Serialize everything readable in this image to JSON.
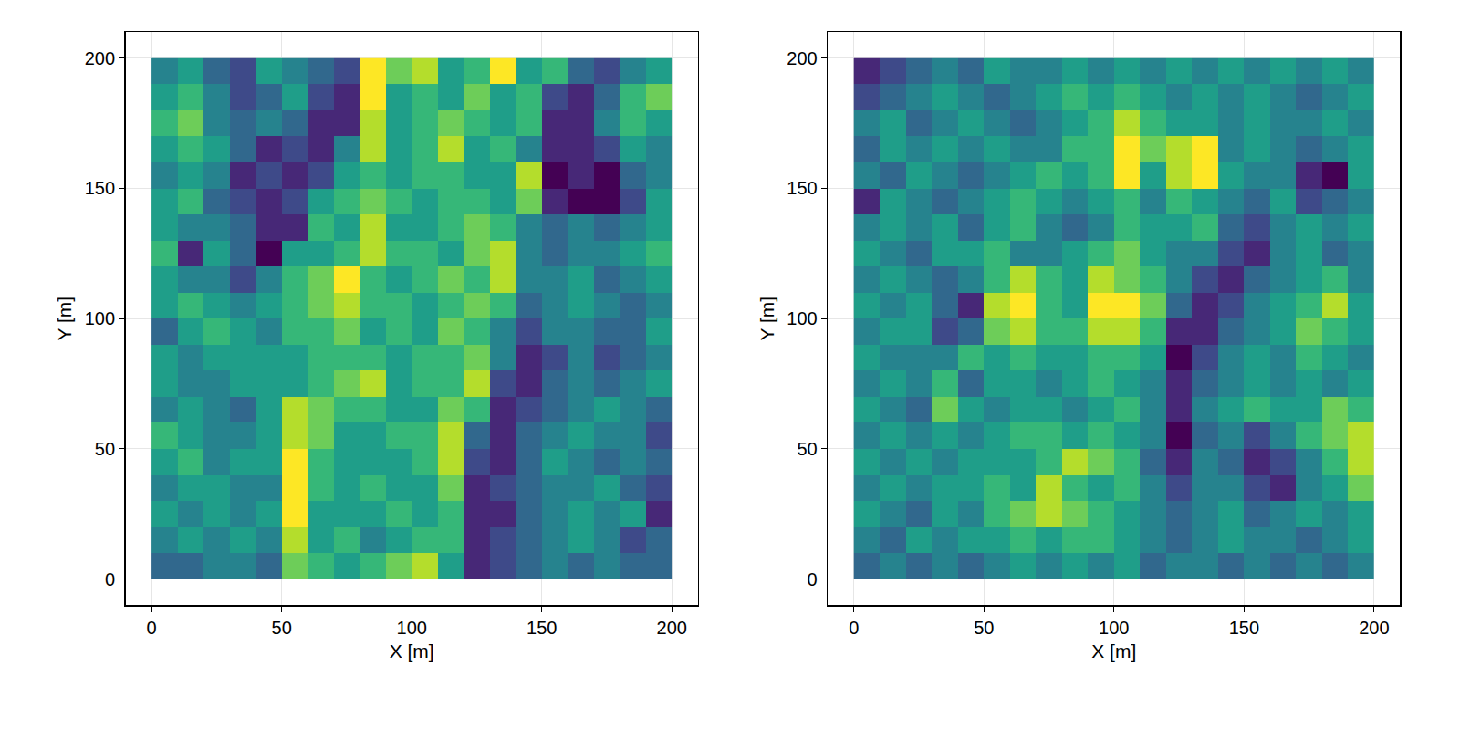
{
  "chart_data": [
    {
      "type": "heatmap",
      "xlabel": "X [m]",
      "ylabel": "Y [m]",
      "color": "Viridis",
      "grid": true,
      "xlim": [
        -10,
        210
      ],
      "ylim": [
        -10,
        210
      ],
      "xticks": [
        0,
        50,
        100,
        150,
        200
      ],
      "yticks": [
        0,
        50,
        100,
        150,
        200
      ],
      "zlim": [
        0,
        9
      ],
      "x": [
        5,
        15,
        25,
        35,
        45,
        55,
        65,
        75,
        85,
        95,
        105,
        115,
        125,
        135,
        145,
        155,
        165,
        175,
        185,
        195
      ],
      "y": [
        195,
        185,
        175,
        165,
        155,
        145,
        135,
        125,
        115,
        105,
        95,
        85,
        75,
        65,
        55,
        45,
        35,
        25,
        15,
        5
      ],
      "z": [
        [
          4,
          5,
          3,
          2,
          5,
          4,
          3,
          2,
          9,
          7,
          8,
          5,
          6,
          9,
          5,
          6,
          3,
          2,
          4,
          5
        ],
        [
          5,
          6,
          4,
          2,
          3,
          5,
          2,
          1,
          9,
          5,
          6,
          5,
          7,
          5,
          6,
          2,
          1,
          3,
          6,
          7
        ],
        [
          6,
          7,
          4,
          3,
          4,
          3,
          1,
          1,
          8,
          5,
          6,
          7,
          6,
          5,
          6,
          1,
          1,
          4,
          6,
          5
        ],
        [
          5,
          6,
          5,
          3,
          1,
          2,
          1,
          4,
          8,
          5,
          6,
          8,
          5,
          6,
          4,
          1,
          1,
          2,
          5,
          4
        ],
        [
          4,
          5,
          4,
          1,
          2,
          1,
          2,
          5,
          6,
          5,
          6,
          6,
          5,
          5,
          8,
          0,
          1,
          0,
          3,
          4
        ],
        [
          5,
          6,
          3,
          2,
          1,
          2,
          5,
          6,
          7,
          6,
          5,
          6,
          6,
          5,
          7,
          1,
          0,
          0,
          2,
          5
        ],
        [
          5,
          4,
          4,
          3,
          1,
          1,
          6,
          5,
          8,
          5,
          5,
          6,
          7,
          6,
          4,
          3,
          4,
          3,
          4,
          5
        ],
        [
          6,
          1,
          5,
          3,
          0,
          5,
          5,
          6,
          8,
          6,
          6,
          5,
          7,
          8,
          4,
          3,
          4,
          4,
          5,
          6
        ],
        [
          5,
          4,
          4,
          2,
          4,
          6,
          7,
          9,
          6,
          5,
          6,
          7,
          6,
          8,
          4,
          4,
          5,
          3,
          4,
          5
        ],
        [
          5,
          6,
          5,
          4,
          5,
          6,
          7,
          8,
          6,
          6,
          5,
          6,
          7,
          6,
          3,
          4,
          5,
          4,
          3,
          4
        ],
        [
          3,
          5,
          6,
          5,
          4,
          6,
          6,
          7,
          5,
          6,
          5,
          7,
          6,
          4,
          2,
          4,
          4,
          3,
          3,
          5
        ],
        [
          5,
          4,
          5,
          5,
          5,
          5,
          6,
          6,
          6,
          5,
          6,
          6,
          7,
          4,
          1,
          2,
          4,
          2,
          3,
          4
        ],
        [
          5,
          4,
          4,
          5,
          5,
          5,
          6,
          7,
          8,
          5,
          6,
          6,
          8,
          2,
          1,
          3,
          4,
          3,
          4,
          5
        ],
        [
          4,
          5,
          4,
          3,
          5,
          8,
          7,
          6,
          6,
          5,
          5,
          7,
          6,
          1,
          2,
          3,
          4,
          5,
          4,
          3
        ],
        [
          6,
          5,
          4,
          4,
          5,
          8,
          7,
          5,
          5,
          6,
          6,
          8,
          3,
          1,
          3,
          4,
          5,
          4,
          4,
          2
        ],
        [
          5,
          6,
          4,
          5,
          5,
          9,
          6,
          5,
          5,
          5,
          6,
          8,
          2,
          1,
          3,
          5,
          4,
          3,
          4,
          3
        ],
        [
          4,
          5,
          5,
          4,
          4,
          9,
          6,
          5,
          6,
          5,
          5,
          7,
          1,
          2,
          3,
          4,
          4,
          5,
          3,
          2
        ],
        [
          5,
          4,
          5,
          4,
          5,
          9,
          5,
          5,
          5,
          6,
          5,
          6,
          1,
          1,
          3,
          4,
          5,
          4,
          5,
          1
        ],
        [
          4,
          5,
          4,
          5,
          4,
          8,
          5,
          6,
          4,
          5,
          6,
          6,
          1,
          2,
          3,
          4,
          5,
          4,
          2,
          3
        ],
        [
          3,
          3,
          4,
          4,
          3,
          7,
          6,
          5,
          6,
          7,
          8,
          5,
          1,
          2,
          3,
          4,
          3,
          4,
          3,
          3
        ]
      ]
    },
    {
      "type": "heatmap",
      "xlabel": "X [m]",
      "ylabel": "Y [m]",
      "color": "Viridis",
      "grid": true,
      "xlim": [
        -10,
        210
      ],
      "ylim": [
        -10,
        210
      ],
      "xticks": [
        0,
        50,
        100,
        150,
        200
      ],
      "yticks": [
        0,
        50,
        100,
        150,
        200
      ],
      "zlim": [
        0,
        9
      ],
      "x": [
        5,
        15,
        25,
        35,
        45,
        55,
        65,
        75,
        85,
        95,
        105,
        115,
        125,
        135,
        145,
        155,
        165,
        175,
        185,
        195
      ],
      "y": [
        195,
        185,
        175,
        165,
        155,
        145,
        135,
        125,
        115,
        105,
        95,
        85,
        75,
        65,
        55,
        45,
        35,
        25,
        15,
        5
      ],
      "z": [
        [
          1,
          2,
          3,
          4,
          3,
          5,
          4,
          4,
          5,
          4,
          5,
          4,
          5,
          4,
          5,
          4,
          5,
          4,
          5,
          4
        ],
        [
          2,
          3,
          4,
          5,
          4,
          3,
          4,
          5,
          6,
          5,
          6,
          5,
          4,
          5,
          4,
          5,
          4,
          3,
          4,
          5
        ],
        [
          4,
          5,
          3,
          4,
          5,
          4,
          3,
          4,
          5,
          6,
          8,
          6,
          5,
          5,
          4,
          5,
          4,
          4,
          5,
          4
        ],
        [
          3,
          5,
          4,
          5,
          4,
          5,
          4,
          4,
          6,
          6,
          9,
          7,
          8,
          9,
          4,
          5,
          4,
          3,
          4,
          5
        ],
        [
          4,
          3,
          5,
          4,
          3,
          4,
          5,
          6,
          5,
          6,
          9,
          5,
          8,
          9,
          5,
          4,
          4,
          1,
          0,
          5
        ],
        [
          1,
          5,
          4,
          3,
          4,
          5,
          6,
          5,
          4,
          5,
          6,
          4,
          6,
          5,
          4,
          3,
          5,
          2,
          3,
          4
        ],
        [
          4,
          5,
          4,
          5,
          3,
          5,
          6,
          4,
          3,
          4,
          6,
          5,
          5,
          6,
          3,
          2,
          4,
          5,
          4,
          5
        ],
        [
          5,
          4,
          3,
          5,
          5,
          6,
          4,
          4,
          5,
          6,
          7,
          5,
          4,
          4,
          2,
          1,
          4,
          5,
          3,
          4
        ],
        [
          4,
          5,
          4,
          3,
          4,
          6,
          8,
          6,
          5,
          8,
          7,
          6,
          4,
          2,
          1,
          3,
          4,
          5,
          6,
          4
        ],
        [
          5,
          4,
          5,
          3,
          1,
          8,
          9,
          6,
          5,
          9,
          9,
          7,
          3,
          1,
          2,
          4,
          5,
          6,
          8,
          5
        ],
        [
          4,
          5,
          5,
          2,
          3,
          7,
          8,
          6,
          6,
          8,
          8,
          6,
          1,
          1,
          3,
          4,
          5,
          7,
          6,
          5
        ],
        [
          5,
          4,
          4,
          4,
          6,
          5,
          6,
          5,
          5,
          6,
          6,
          5,
          0,
          2,
          4,
          5,
          4,
          6,
          5,
          4
        ],
        [
          4,
          5,
          4,
          6,
          3,
          5,
          5,
          4,
          5,
          6,
          5,
          4,
          1,
          3,
          4,
          5,
          4,
          5,
          4,
          5
        ],
        [
          5,
          4,
          3,
          7,
          5,
          4,
          5,
          5,
          4,
          5,
          6,
          4,
          1,
          4,
          5,
          6,
          5,
          5,
          7,
          6
        ],
        [
          4,
          5,
          4,
          5,
          4,
          5,
          6,
          6,
          5,
          6,
          5,
          4,
          0,
          3,
          4,
          2,
          4,
          6,
          7,
          8
        ],
        [
          5,
          4,
          5,
          4,
          5,
          5,
          5,
          6,
          8,
          7,
          6,
          3,
          1,
          4,
          3,
          1,
          2,
          4,
          6,
          8
        ],
        [
          4,
          5,
          4,
          5,
          5,
          6,
          5,
          8,
          6,
          5,
          6,
          4,
          2,
          4,
          4,
          2,
          1,
          4,
          5,
          7
        ],
        [
          5,
          4,
          3,
          5,
          4,
          6,
          7,
          8,
          7,
          6,
          5,
          4,
          3,
          4,
          5,
          3,
          4,
          5,
          4,
          5
        ],
        [
          4,
          3,
          5,
          4,
          5,
          5,
          6,
          5,
          6,
          6,
          5,
          4,
          3,
          4,
          5,
          4,
          4,
          3,
          4,
          5
        ],
        [
          3,
          4,
          3,
          4,
          3,
          4,
          5,
          4,
          5,
          4,
          5,
          3,
          4,
          4,
          3,
          4,
          3,
          4,
          3,
          4
        ]
      ]
    }
  ]
}
